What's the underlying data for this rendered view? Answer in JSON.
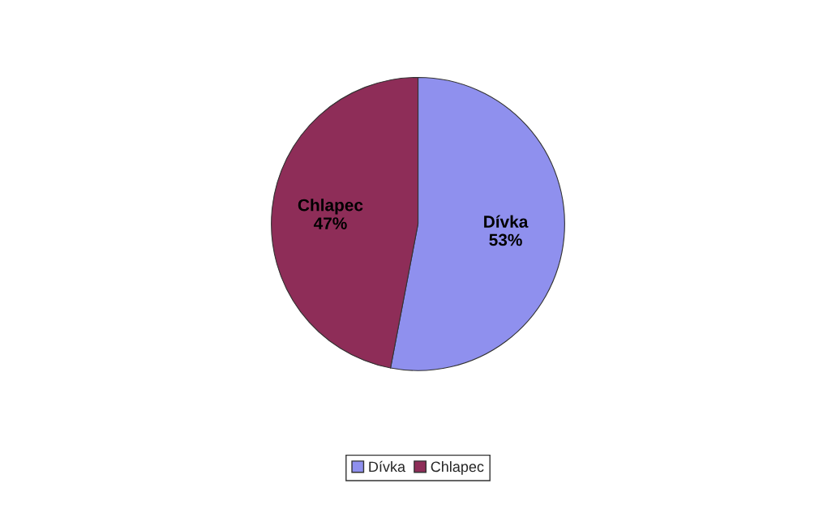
{
  "chart_data": {
    "type": "pie",
    "categories": [
      "Dívka",
      "Chlapec"
    ],
    "values": [
      53,
      47
    ],
    "colors": [
      "#8f90ee",
      "#8e2d58"
    ],
    "value_labels": [
      "53%",
      "47%"
    ],
    "legend": "bottom"
  }
}
